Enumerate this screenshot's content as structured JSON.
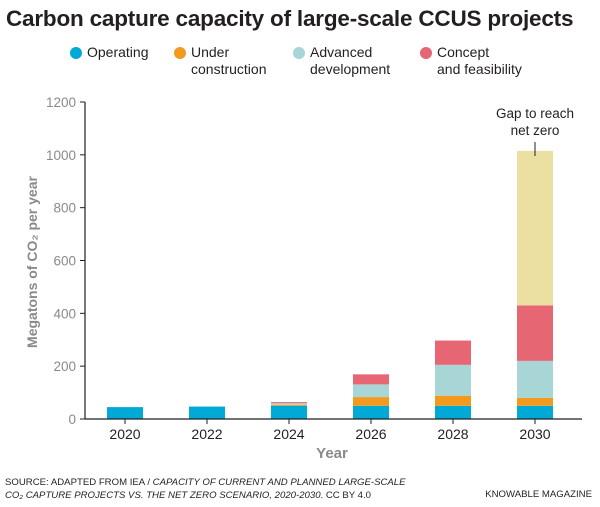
{
  "title": "Carbon capture capacity of large-scale CCUS projects",
  "legend": [
    {
      "label_line1": "Operating",
      "label_line2": "",
      "color": "#00a9d6"
    },
    {
      "label_line1": "Under",
      "label_line2": "construction",
      "color": "#f29a1e"
    },
    {
      "label_line1": "Advanced",
      "label_line2": "development",
      "color": "#a8d5d5"
    },
    {
      "label_line1": "Concept",
      "label_line2": "and feasibility",
      "color": "#e66674"
    }
  ],
  "annotation": {
    "line1": "Gap to reach",
    "line2": "net zero"
  },
  "footer": {
    "source_prefix": "SOURCE: ADAPTED FROM IEA / ",
    "source_title_1": "CAPACITY OF CURRENT AND PLANNED LARGE-SCALE",
    "source_title_2": "CO₂ CAPTURE PROJECTS VS. THE NET ZERO SCENARIO, 2020-2030",
    "source_suffix": ". CC BY 4.0",
    "brand": "KNOWABLE MAGAZINE"
  },
  "chart_data": {
    "type": "bar",
    "stacked": true,
    "categories": [
      "2020",
      "2022",
      "2024",
      "2026",
      "2028",
      "2030"
    ],
    "xlabel": "Year",
    "ylabel": "Megatons of CO₂ per year",
    "ylim": [
      0,
      1200
    ],
    "yticks": [
      0,
      200,
      400,
      600,
      800,
      1000,
      1200
    ],
    "series": [
      {
        "name": "Operating",
        "color": "#00a9d6",
        "values": [
          45,
          47,
          50,
          50,
          50,
          50
        ]
      },
      {
        "name": "Under construction",
        "color": "#f29a1e",
        "values": [
          0,
          0,
          4,
          33,
          38,
          30
        ]
      },
      {
        "name": "Advanced development",
        "color": "#a8d5d5",
        "values": [
          0,
          0,
          6,
          48,
          117,
          140
        ]
      },
      {
        "name": "Concept and feasibility",
        "color": "#e66674",
        "values": [
          0,
          0,
          4,
          38,
          92,
          210
        ]
      },
      {
        "name": "Gap to reach net zero",
        "color": "#ebdfa1",
        "values": [
          0,
          0,
          0,
          0,
          0,
          585
        ]
      }
    ]
  }
}
